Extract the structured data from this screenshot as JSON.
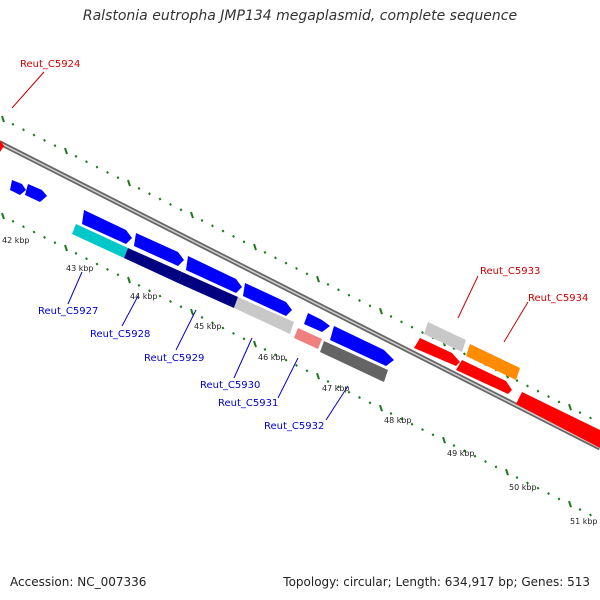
{
  "title": "Ralstonia eutropha JMP134 megaplasmid, complete sequence",
  "footer": {
    "accession": "Accession: NC_007336",
    "summary": "Topology: circular; Length: 634,917 bp; Genes: 513"
  },
  "colors": {
    "backbone": "#888888",
    "tick": "#1a7a1a",
    "label_red": "#cc0000",
    "label_blue": "#0000cc"
  },
  "ticks": [
    "42 kbp",
    "43 kbp",
    "44 kbp",
    "45 kbp",
    "46 kbp",
    "47 kbp",
    "48 kbp",
    "49 kbp",
    "50 kbp",
    "51 kbp"
  ],
  "genes": [
    {
      "label": "Reut_C5924",
      "color": "#ff0000",
      "strand": "forward"
    },
    {
      "label": "",
      "color": "#0000ff",
      "strand": "forward"
    },
    {
      "label": "",
      "color": "#0000ff",
      "strand": "forward"
    },
    {
      "label": "",
      "color": "#0000ff",
      "strand": "forward"
    },
    {
      "label": "",
      "color": "#0000ff",
      "strand": "forward"
    },
    {
      "label": "",
      "color": "#0000ff",
      "strand": "forward"
    },
    {
      "label": "",
      "color": "#0000ff",
      "strand": "forward"
    },
    {
      "label": "",
      "color": "#0000ff",
      "strand": "forward"
    },
    {
      "label": "",
      "color": "#0000ff",
      "strand": "forward"
    },
    {
      "label": "Reut_C5927",
      "color": "#00c8c8",
      "strand": "reverse"
    },
    {
      "label": "Reut_C5928",
      "color": "#000080",
      "strand": "reverse"
    },
    {
      "label": "Reut_C5929",
      "color": "#000080",
      "strand": "reverse"
    },
    {
      "label": "Reut_C5930",
      "color": "#c8c8c8",
      "strand": "reverse"
    },
    {
      "label": "Reut_C5931",
      "color": "#f08080",
      "strand": "reverse"
    },
    {
      "label": "Reut_C5932",
      "color": "#646464",
      "strand": "reverse"
    },
    {
      "label": "Reut_C5933",
      "color": "#c8c8c8",
      "strand": "forward"
    },
    {
      "label": "Reut_C5934",
      "color": "#ff8c00",
      "strand": "forward"
    },
    {
      "label": "",
      "color": "#ff0000",
      "strand": "reverse"
    },
    {
      "label": "",
      "color": "#ff0000",
      "strand": "reverse"
    },
    {
      "label": "",
      "color": "#ff0000",
      "strand": "reverse"
    }
  ]
}
